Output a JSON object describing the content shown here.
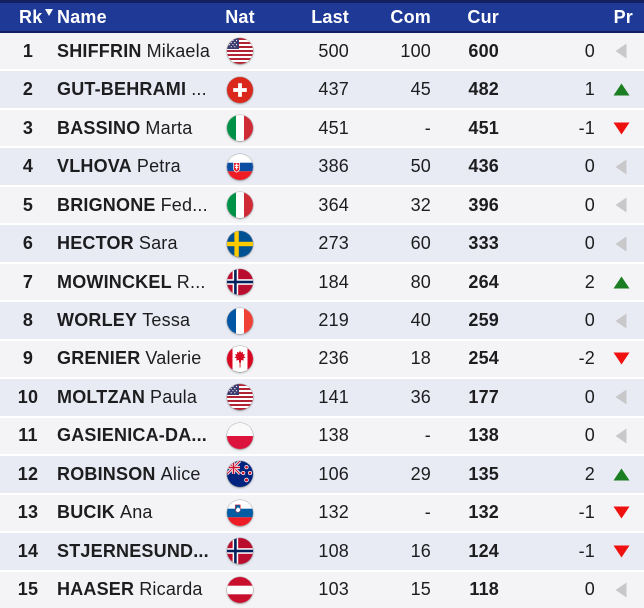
{
  "header": {
    "columns": {
      "rk": "Rk",
      "name": "Name",
      "nat": "Nat",
      "last": "Last",
      "com": "Com",
      "cur": "Cur",
      "pr": "Pr"
    },
    "sort_column": "rk",
    "sort_direction": "desc"
  },
  "colors": {
    "header_bg": "#1e3a96",
    "header_border": "#132060",
    "row_odd": "#f4f4f6",
    "row_even": "#e9ebf4",
    "trend_up": "#1b7e22",
    "trend_down": "#ef1010",
    "trend_same": "#c8c8ca",
    "text": "#1d1d1f"
  },
  "rows": [
    {
      "rank": "1",
      "surname": "SHIFFRIN",
      "given": "Mikaela",
      "nat": "us",
      "last": "500",
      "com": "100",
      "cur": "600",
      "pr": "0",
      "trend": "same"
    },
    {
      "rank": "2",
      "surname": "GUT-BEHRAMI",
      "given": "...",
      "nat": "ch",
      "last": "437",
      "com": "45",
      "cur": "482",
      "pr": "1",
      "trend": "up"
    },
    {
      "rank": "3",
      "surname": "BASSINO",
      "given": "Marta",
      "nat": "it",
      "last": "451",
      "com": "-",
      "cur": "451",
      "pr": "-1",
      "trend": "down"
    },
    {
      "rank": "4",
      "surname": "VLHOVA",
      "given": "Petra",
      "nat": "sk",
      "last": "386",
      "com": "50",
      "cur": "436",
      "pr": "0",
      "trend": "same"
    },
    {
      "rank": "5",
      "surname": "BRIGNONE",
      "given": "Fed...",
      "nat": "it",
      "last": "364",
      "com": "32",
      "cur": "396",
      "pr": "0",
      "trend": "same"
    },
    {
      "rank": "6",
      "surname": "HECTOR",
      "given": "Sara",
      "nat": "se",
      "last": "273",
      "com": "60",
      "cur": "333",
      "pr": "0",
      "trend": "same"
    },
    {
      "rank": "7",
      "surname": "MOWINCKEL",
      "given": "R...",
      "nat": "no",
      "last": "184",
      "com": "80",
      "cur": "264",
      "pr": "2",
      "trend": "up"
    },
    {
      "rank": "8",
      "surname": "WORLEY",
      "given": "Tessa",
      "nat": "fr",
      "last": "219",
      "com": "40",
      "cur": "259",
      "pr": "0",
      "trend": "same"
    },
    {
      "rank": "9",
      "surname": "GRENIER",
      "given": "Valerie",
      "nat": "ca",
      "last": "236",
      "com": "18",
      "cur": "254",
      "pr": "-2",
      "trend": "down"
    },
    {
      "rank": "10",
      "surname": "MOLTZAN",
      "given": "Paula",
      "nat": "us",
      "last": "141",
      "com": "36",
      "cur": "177",
      "pr": "0",
      "trend": "same"
    },
    {
      "rank": "11",
      "surname": "GASIENICA-DA...",
      "given": "",
      "nat": "pl",
      "last": "138",
      "com": "-",
      "cur": "138",
      "pr": "0",
      "trend": "same"
    },
    {
      "rank": "12",
      "surname": "ROBINSON",
      "given": "Alice",
      "nat": "nz",
      "last": "106",
      "com": "29",
      "cur": "135",
      "pr": "2",
      "trend": "up"
    },
    {
      "rank": "13",
      "surname": "BUCIK",
      "given": "Ana",
      "nat": "si",
      "last": "132",
      "com": "-",
      "cur": "132",
      "pr": "-1",
      "trend": "down"
    },
    {
      "rank": "14",
      "surname": "STJERNESUND...",
      "given": "",
      "nat": "no",
      "last": "108",
      "com": "16",
      "cur": "124",
      "pr": "-1",
      "trend": "down"
    },
    {
      "rank": "15",
      "surname": "HAASER",
      "given": "Ricarda",
      "nat": "at",
      "last": "103",
      "com": "15",
      "cur": "118",
      "pr": "0",
      "trend": "same"
    }
  ]
}
